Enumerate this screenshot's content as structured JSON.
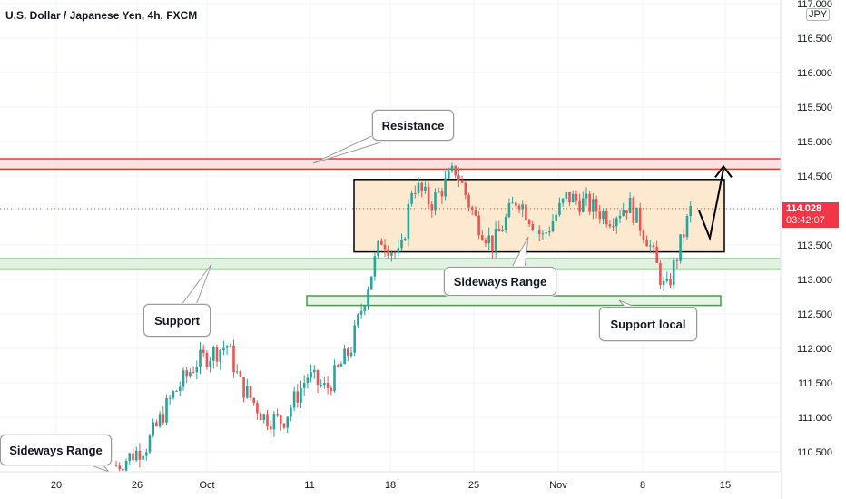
{
  "header": {
    "symbol_title": "U.S. Dollar / Japanese Yen, 4h, FXCM"
  },
  "price_axis": {
    "currency": "JPY",
    "current_price": "114.028",
    "countdown": "03:42:07",
    "ticks": [
      "117.000",
      "116.500",
      "116.000",
      "115.500",
      "115.000",
      "114.500",
      "113.500",
      "113.000",
      "112.500",
      "112.000",
      "111.500",
      "111.000",
      "110.500"
    ]
  },
  "time_axis": {
    "ticks": [
      "20",
      "26",
      "Oct",
      "11",
      "18",
      "25",
      "Nov",
      "8",
      "15"
    ]
  },
  "annotations": {
    "resistance": "Resistance",
    "support": "Support",
    "sideways_range_main": "Sideways Range",
    "sideways_range_left": "Sideways Range",
    "support_local": "Support local"
  },
  "colors": {
    "bull": "#26a69a",
    "bear": "#ef5350",
    "resistance_line": "#e53935",
    "support_line": "#43a047",
    "range_fill": "#fde9cf",
    "price_tag": "#f23645"
  },
  "chart_data": {
    "type": "candlestick",
    "title": "U.S. Dollar / Japanese Yen, 4h, FXCM",
    "ylim": [
      110.2,
      117.0
    ],
    "x_categories": [
      "20",
      "26",
      "Oct",
      "11",
      "18",
      "25",
      "Nov",
      "8",
      "15"
    ],
    "levels": {
      "resistance": [
        114.6,
        114.75
      ],
      "support": [
        113.15,
        113.3
      ],
      "support_local": [
        112.65,
        112.75
      ],
      "range": [
        113.4,
        114.45
      ],
      "current": 114.028
    },
    "path_points": [
      [
        0,
        110.3
      ],
      [
        5,
        110.6
      ],
      [
        9,
        111.3
      ],
      [
        13,
        111.8
      ],
      [
        18,
        112.05
      ],
      [
        20,
        111.5
      ],
      [
        24,
        111.0
      ],
      [
        27,
        110.95
      ],
      [
        31,
        111.6
      ],
      [
        34,
        111.4
      ],
      [
        38,
        112.0
      ],
      [
        41,
        113.0
      ],
      [
        43,
        113.6
      ],
      [
        46,
        113.3
      ],
      [
        48,
        114.4
      ],
      [
        51,
        114.1
      ],
      [
        55,
        114.6
      ],
      [
        58,
        113.9
      ],
      [
        61,
        113.5
      ],
      [
        65,
        114.2
      ],
      [
        69,
        113.6
      ],
      [
        73,
        114.2
      ],
      [
        76,
        114.1
      ],
      [
        80,
        113.9
      ],
      [
        83,
        114.1
      ],
      [
        86,
        113.6
      ],
      [
        89,
        112.8
      ],
      [
        91,
        113.4
      ],
      [
        93,
        114.0
      ]
    ],
    "projection": [
      114.0,
      113.6,
      114.6
    ]
  }
}
